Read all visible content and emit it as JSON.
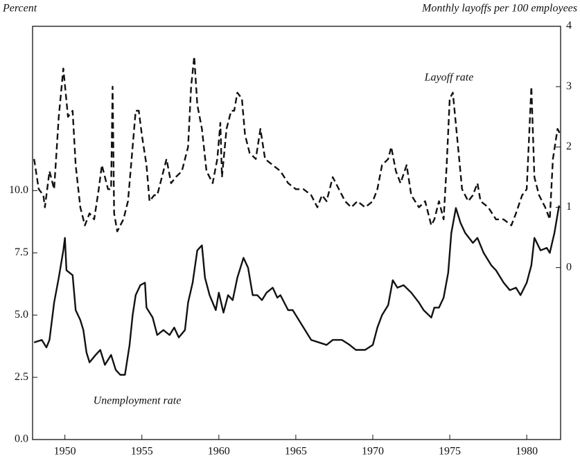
{
  "chart_data": {
    "type": "line",
    "y_label": "Percent",
    "y2_label": "Monthly layoffs per 100 employees",
    "annotations": [
      "Layoff rate",
      "Unemployment rate"
    ],
    "xlim": [
      1947.9,
      1982.2
    ],
    "xticks": [
      1950,
      1955,
      1960,
      1965,
      1970,
      1975,
      1980
    ],
    "ylim": [
      0,
      16.6
    ],
    "yticks": [
      {
        "value": 0,
        "label": "0.0"
      },
      2.5,
      {
        "value": 5,
        "label": "5.0"
      },
      7.5,
      {
        "value": 10,
        "label": "10.0"
      }
    ],
    "y2lim": [
      -2.85,
      4
    ],
    "y2ticks": [
      0,
      1,
      2,
      3,
      4
    ],
    "series": [
      {
        "name": "Unemployment rate",
        "color": "#111111",
        "dash": "solid",
        "x": [
          1948.0,
          1948.5,
          1948.8,
          1949.0,
          1949.3,
          1949.6,
          1949.9,
          1950.0,
          1950.1,
          1950.5,
          1950.7,
          1951.0,
          1951.2,
          1951.4,
          1951.6,
          1952.0,
          1952.3,
          1952.6,
          1953.0,
          1953.3,
          1953.6,
          1953.9,
          1954.2,
          1954.4,
          1954.6,
          1954.9,
          1955.2,
          1955.3,
          1955.7,
          1956.0,
          1956.4,
          1956.8,
          1957.1,
          1957.4,
          1957.8,
          1958.0,
          1958.3,
          1958.6,
          1958.9,
          1959.1,
          1959.4,
          1959.8,
          1960.0,
          1960.3,
          1960.6,
          1960.9,
          1961.2,
          1961.6,
          1961.9,
          1962.2,
          1962.5,
          1962.8,
          1963.1,
          1963.5,
          1963.8,
          1964.0,
          1964.5,
          1964.8,
          1965.0,
          1965.5,
          1966.0,
          1966.5,
          1967.0,
          1967.4,
          1968.0,
          1968.5,
          1968.9,
          1969.5,
          1970.0,
          1970.3,
          1970.6,
          1971.0,
          1971.3,
          1971.6,
          1972.0,
          1972.5,
          1973.0,
          1973.3,
          1973.8,
          1974.0,
          1974.3,
          1974.6,
          1974.9,
          1975.1,
          1975.4,
          1975.7,
          1976.0,
          1976.5,
          1976.8,
          1977.2,
          1977.7,
          1978.0,
          1978.5,
          1978.9,
          1979.3,
          1979.6,
          1980.0,
          1980.3,
          1980.5,
          1980.9,
          1981.3,
          1981.5,
          1981.8,
          1982.1
        ],
        "values": [
          3.9,
          4.0,
          3.7,
          4.0,
          5.5,
          6.5,
          7.6,
          8.1,
          6.8,
          6.6,
          5.2,
          4.8,
          4.4,
          3.5,
          3.1,
          3.4,
          3.6,
          3.0,
          3.4,
          2.8,
          2.6,
          2.6,
          3.8,
          5.0,
          5.8,
          6.2,
          6.3,
          5.3,
          4.9,
          4.2,
          4.4,
          4.2,
          4.5,
          4.1,
          4.4,
          5.5,
          6.3,
          7.6,
          7.8,
          6.5,
          5.8,
          5.2,
          5.9,
          5.1,
          5.8,
          5.6,
          6.5,
          7.3,
          6.9,
          5.8,
          5.8,
          5.6,
          5.9,
          6.1,
          5.7,
          5.8,
          5.2,
          5.2,
          5.0,
          4.5,
          4.0,
          3.9,
          3.8,
          4.0,
          4.0,
          3.8,
          3.6,
          3.6,
          3.8,
          4.5,
          5.0,
          5.4,
          6.4,
          6.1,
          6.2,
          5.9,
          5.5,
          5.2,
          4.9,
          5.3,
          5.3,
          5.7,
          6.7,
          8.3,
          9.3,
          8.7,
          8.3,
          7.9,
          8.1,
          7.5,
          7.0,
          6.8,
          6.3,
          6.0,
          6.1,
          5.8,
          6.3,
          7.0,
          8.1,
          7.6,
          7.7,
          7.5,
          8.3,
          9.4
        ]
      },
      {
        "name": "Layoff rate",
        "color": "#111111",
        "dash": "dashed",
        "axis": "y2",
        "x": [
          1948.0,
          1948.3,
          1948.6,
          1948.7,
          1949.0,
          1949.3,
          1949.6,
          1949.9,
          1950.2,
          1950.5,
          1950.7,
          1951.0,
          1951.3,
          1951.6,
          1951.9,
          1952.2,
          1952.4,
          1952.8,
          1953.0,
          1953.1,
          1953.2,
          1953.4,
          1953.8,
          1954.1,
          1954.4,
          1954.6,
          1954.8,
          1955.0,
          1955.3,
          1955.5,
          1955.8,
          1956.0,
          1956.3,
          1956.6,
          1956.9,
          1957.2,
          1957.6,
          1958.0,
          1958.2,
          1958.4,
          1958.6,
          1958.9,
          1959.2,
          1959.6,
          1959.9,
          1960.1,
          1960.2,
          1960.5,
          1960.8,
          1961.0,
          1961.2,
          1961.5,
          1961.7,
          1962.0,
          1962.4,
          1962.7,
          1963.0,
          1963.5,
          1964.0,
          1964.5,
          1965.0,
          1965.5,
          1966.0,
          1966.4,
          1966.7,
          1967.0,
          1967.4,
          1967.8,
          1968.2,
          1968.6,
          1969.0,
          1969.5,
          1970.0,
          1970.3,
          1970.6,
          1971.0,
          1971.2,
          1971.5,
          1971.8,
          1972.2,
          1972.5,
          1973.0,
          1973.4,
          1973.8,
          1974.0,
          1974.3,
          1974.6,
          1974.8,
          1975.0,
          1975.2,
          1975.5,
          1975.8,
          1976.2,
          1976.5,
          1976.8,
          1977.0,
          1977.5,
          1978.0,
          1978.5,
          1979.0,
          1979.3,
          1979.7,
          1980.0,
          1980.3,
          1980.5,
          1980.8,
          1981.2,
          1981.5,
          1981.7,
          1982.0,
          1982.2
        ],
        "values": [
          1.8,
          1.3,
          1.2,
          1.0,
          1.6,
          1.3,
          2.5,
          3.3,
          2.5,
          2.6,
          1.7,
          1.0,
          0.7,
          0.9,
          0.8,
          1.3,
          1.7,
          1.3,
          1.3,
          3.0,
          0.9,
          0.6,
          0.8,
          1.1,
          2.0,
          2.6,
          2.6,
          2.2,
          1.7,
          1.1,
          1.2,
          1.2,
          1.5,
          1.8,
          1.4,
          1.5,
          1.6,
          2.0,
          3.0,
          3.5,
          2.7,
          2.3,
          1.6,
          1.4,
          1.8,
          2.4,
          1.5,
          2.3,
          2.6,
          2.6,
          2.9,
          2.8,
          2.2,
          1.9,
          1.8,
          2.3,
          1.8,
          1.7,
          1.6,
          1.4,
          1.3,
          1.3,
          1.2,
          1.0,
          1.2,
          1.1,
          1.5,
          1.3,
          1.1,
          1.0,
          1.1,
          1.0,
          1.1,
          1.3,
          1.7,
          1.8,
          2.0,
          1.6,
          1.4,
          1.7,
          1.2,
          1.0,
          1.1,
          0.7,
          0.8,
          1.1,
          0.8,
          1.7,
          2.8,
          2.9,
          2.1,
          1.3,
          1.1,
          1.2,
          1.4,
          1.1,
          1.0,
          0.8,
          0.8,
          0.7,
          0.9,
          1.2,
          1.3,
          3.0,
          1.5,
          1.2,
          1.0,
          0.8,
          1.8,
          2.3,
          2.2
        ]
      }
    ]
  }
}
